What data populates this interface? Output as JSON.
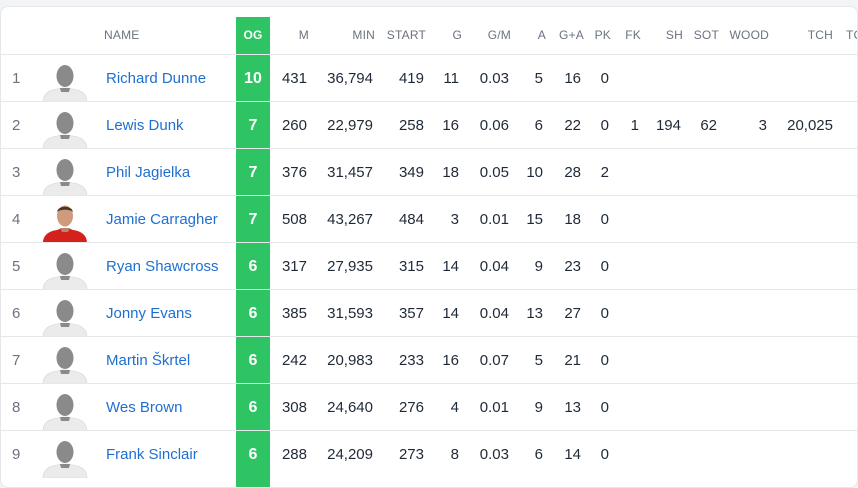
{
  "columns": {
    "name": "NAME",
    "og": "OG",
    "m": "M",
    "min": "MIN",
    "start": "START",
    "g": "G",
    "gpm": "G/M",
    "a": "A",
    "ga": "G+A",
    "pk": "PK",
    "fk": "FK",
    "sh": "SH",
    "sot": "SOT",
    "wood": "WOOD",
    "tch": "TCH",
    "extra": "TC"
  },
  "colors": {
    "og_band": "#2ec464",
    "link": "#1f6fd1",
    "avatar_silhouette": "#8a8a8a",
    "avatar_shirt": "#ebebeb",
    "red_shirt": "#d5211c"
  },
  "players": [
    {
      "rank": "1",
      "name": "Richard Dunne",
      "avatar": "silhouette-avatar",
      "og": "10",
      "m": "431",
      "min": "36,794",
      "start": "419",
      "g": "11",
      "gpm": "0.03",
      "a": "5",
      "ga": "16",
      "pk": "0",
      "fk": "",
      "sh": "",
      "sot": "",
      "wood": "",
      "tch": ""
    },
    {
      "rank": "2",
      "name": "Lewis Dunk",
      "avatar": "silhouette-avatar",
      "og": "7",
      "m": "260",
      "min": "22,979",
      "start": "258",
      "g": "16",
      "gpm": "0.06",
      "a": "6",
      "ga": "22",
      "pk": "0",
      "fk": "1",
      "sh": "194",
      "sot": "62",
      "wood": "3",
      "tch": "20,025"
    },
    {
      "rank": "3",
      "name": "Phil Jagielka",
      "avatar": "silhouette-avatar",
      "og": "7",
      "m": "376",
      "min": "31,457",
      "start": "349",
      "g": "18",
      "gpm": "0.05",
      "a": "10",
      "ga": "28",
      "pk": "2",
      "fk": "",
      "sh": "",
      "sot": "",
      "wood": "",
      "tch": ""
    },
    {
      "rank": "4",
      "name": "Jamie Carragher",
      "avatar": "player-photo",
      "og": "7",
      "m": "508",
      "min": "43,267",
      "start": "484",
      "g": "3",
      "gpm": "0.01",
      "a": "15",
      "ga": "18",
      "pk": "0",
      "fk": "",
      "sh": "",
      "sot": "",
      "wood": "",
      "tch": ""
    },
    {
      "rank": "5",
      "name": "Ryan Shawcross",
      "avatar": "silhouette-avatar",
      "og": "6",
      "m": "317",
      "min": "27,935",
      "start": "315",
      "g": "14",
      "gpm": "0.04",
      "a": "9",
      "ga": "23",
      "pk": "0",
      "fk": "",
      "sh": "",
      "sot": "",
      "wood": "",
      "tch": ""
    },
    {
      "rank": "6",
      "name": "Jonny Evans",
      "avatar": "silhouette-avatar",
      "og": "6",
      "m": "385",
      "min": "31,593",
      "start": "357",
      "g": "14",
      "gpm": "0.04",
      "a": "13",
      "ga": "27",
      "pk": "0",
      "fk": "",
      "sh": "",
      "sot": "",
      "wood": "",
      "tch": ""
    },
    {
      "rank": "7",
      "name": "Martin Škrtel",
      "avatar": "silhouette-avatar",
      "og": "6",
      "m": "242",
      "min": "20,983",
      "start": "233",
      "g": "16",
      "gpm": "0.07",
      "a": "5",
      "ga": "21",
      "pk": "0",
      "fk": "",
      "sh": "",
      "sot": "",
      "wood": "",
      "tch": ""
    },
    {
      "rank": "8",
      "name": "Wes Brown",
      "avatar": "silhouette-avatar",
      "og": "6",
      "m": "308",
      "min": "24,640",
      "start": "276",
      "g": "4",
      "gpm": "0.01",
      "a": "9",
      "ga": "13",
      "pk": "0",
      "fk": "",
      "sh": "",
      "sot": "",
      "wood": "",
      "tch": ""
    },
    {
      "rank": "9",
      "name": "Frank Sinclair",
      "avatar": "silhouette-avatar",
      "og": "6",
      "m": "288",
      "min": "24,209",
      "start": "273",
      "g": "8",
      "gpm": "0.03",
      "a": "6",
      "ga": "14",
      "pk": "0",
      "fk": "",
      "sh": "",
      "sot": "",
      "wood": "",
      "tch": ""
    }
  ]
}
